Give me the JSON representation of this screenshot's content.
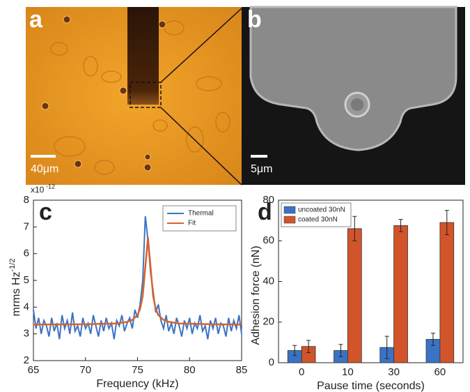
{
  "panels": {
    "a": {
      "label": "a",
      "scale_bar": "40μm"
    },
    "b": {
      "label": "b",
      "scale_bar": "5μm"
    }
  },
  "chart_data": [
    {
      "type": "line",
      "panel_label": "c",
      "xlabel": "Frequency (kHz)",
      "ylabel": "mrms Hz",
      "ylabel_sup": "-1/2",
      "multiplier": "x10",
      "multiplier_sup": "-12",
      "xlim": [
        65,
        85
      ],
      "ylim": [
        2,
        8
      ],
      "xticks": [
        65,
        70,
        75,
        80,
        85
      ],
      "yticks": [
        2,
        3,
        4,
        5,
        6,
        7,
        8
      ],
      "legend": "top-right",
      "series": [
        {
          "name": "Thermal",
          "color": "#3b73c4",
          "x": [
            65,
            65.25,
            65.5,
            65.75,
            66,
            66.25,
            66.5,
            66.75,
            67,
            67.25,
            67.5,
            67.75,
            68,
            68.25,
            68.5,
            68.75,
            69,
            69.25,
            69.5,
            69.75,
            70,
            70.25,
            70.5,
            70.75,
            71,
            71.25,
            71.5,
            71.75,
            72,
            72.25,
            72.5,
            72.75,
            73,
            73.25,
            73.5,
            73.75,
            74,
            74.25,
            74.5,
            74.75,
            75,
            75.25,
            75.5,
            75.75,
            76,
            76.25,
            76.5,
            76.75,
            77,
            77.25,
            77.5,
            77.75,
            78,
            78.25,
            78.5,
            78.75,
            79,
            79.25,
            79.5,
            79.75,
            80,
            80.25,
            80.5,
            80.75,
            81,
            81.25,
            81.5,
            81.75,
            82,
            82.25,
            82.5,
            82.75,
            83,
            83.25,
            83.5,
            83.75,
            84,
            84.25,
            84.5,
            84.75,
            85
          ],
          "values": [
            3.9,
            3.2,
            3.6,
            3.0,
            3.5,
            3.3,
            2.9,
            3.6,
            3.1,
            3.4,
            2.8,
            3.7,
            3.2,
            3.5,
            3.0,
            3.8,
            3.1,
            3.3,
            2.9,
            3.6,
            3.2,
            3.4,
            3.0,
            3.7,
            3.3,
            2.9,
            3.5,
            3.1,
            3.6,
            3.2,
            3.4,
            2.8,
            3.5,
            3.3,
            3.7,
            3.1,
            3.4,
            3.6,
            3.2,
            3.9,
            3.6,
            4.1,
            5.0,
            7.4,
            6.5,
            5.3,
            4.6,
            3.8,
            4.1,
            3.5,
            3.2,
            3.7,
            3.1,
            3.4,
            3.0,
            3.6,
            3.3,
            2.9,
            3.5,
            3.2,
            3.6,
            3.0,
            3.4,
            3.2,
            3.7,
            3.1,
            3.3,
            2.8,
            3.5,
            3.2,
            3.6,
            3.0,
            3.4,
            3.3,
            2.9,
            3.6,
            3.1,
            3.5,
            3.2,
            3.7,
            3.0
          ]
        },
        {
          "name": "Fit",
          "color": "#d9622b",
          "x": [
            65,
            70,
            73,
            74,
            74.5,
            75,
            75.25,
            75.5,
            75.75,
            76,
            76.25,
            76.5,
            76.75,
            77,
            77.5,
            78,
            79,
            82,
            85
          ],
          "values": [
            3.35,
            3.36,
            3.39,
            3.45,
            3.52,
            3.7,
            3.93,
            4.42,
            5.5,
            6.6,
            5.5,
            4.42,
            3.93,
            3.7,
            3.52,
            3.45,
            3.39,
            3.36,
            3.35
          ]
        }
      ]
    },
    {
      "type": "bar",
      "panel_label": "d",
      "xlabel": "Pause time (seconds)",
      "ylabel": "Adhesion force (nN)",
      "categories": [
        "0",
        "10",
        "30",
        "60"
      ],
      "ylim": [
        0,
        80
      ],
      "yticks": [
        0,
        20,
        40,
        60,
        80
      ],
      "legend": "top-left",
      "series": [
        {
          "name": "uncoated 30nN",
          "color": "#3b73c4",
          "values": [
            6,
            6,
            7.5,
            11.5
          ],
          "errors": [
            2.5,
            3,
            5.5,
            3
          ]
        },
        {
          "name": "coated 30nN",
          "color": "#d2542a",
          "values": [
            8,
            66,
            67.5,
            69
          ],
          "errors": [
            3,
            6,
            3,
            6
          ]
        }
      ]
    }
  ]
}
